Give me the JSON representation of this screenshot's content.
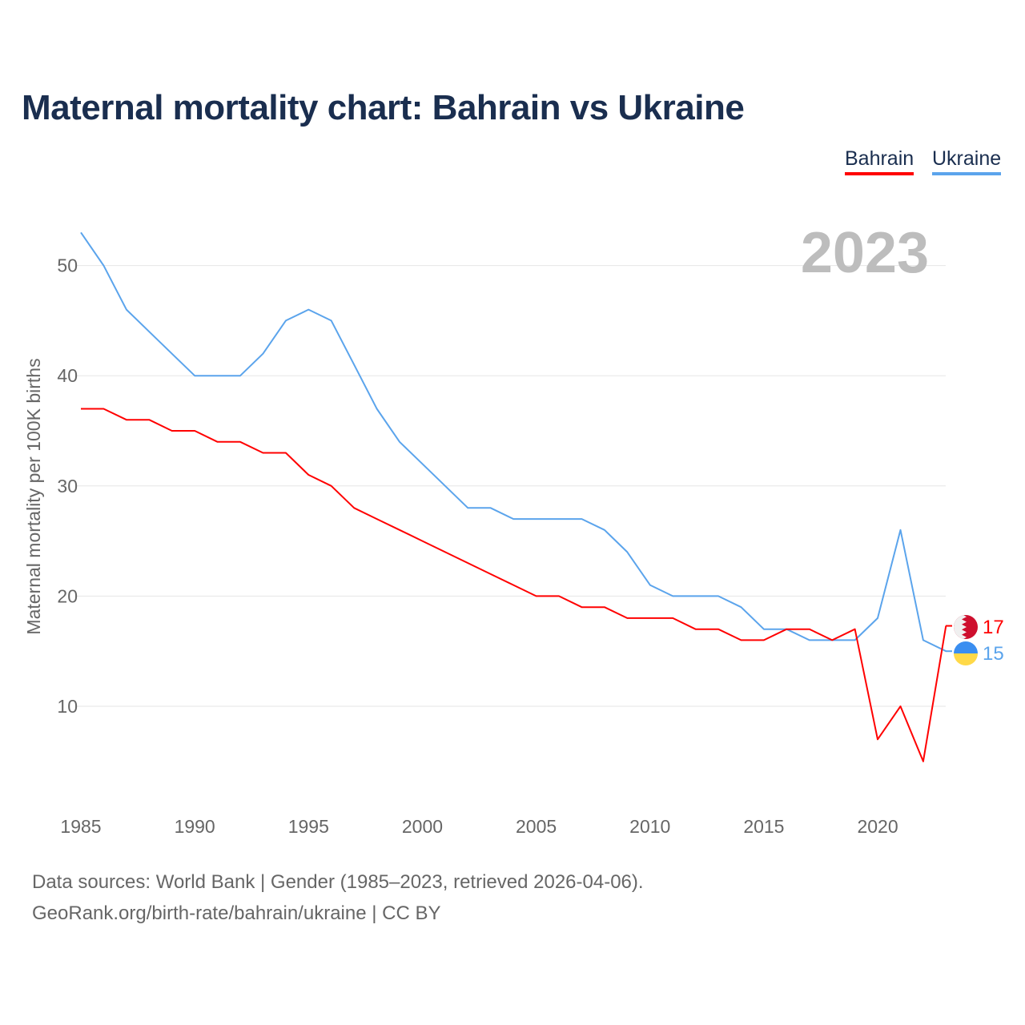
{
  "title": "Maternal mortality chart: Bahrain vs Ukraine",
  "legend": [
    {
      "name": "Bahrain",
      "color": "#ff0000"
    },
    {
      "name": "Ukraine",
      "color": "#5ba4ec"
    }
  ],
  "year_label": "2023",
  "sources": {
    "line1": "Data sources: World Bank | Gender (1985–2023, retrieved 2026-04-06).",
    "line2": "GeoRank.org/birth-rate/bahrain/ukraine | CC BY"
  },
  "chart_data": {
    "type": "line",
    "title": "Maternal mortality chart: Bahrain vs Ukraine",
    "xlabel": "",
    "ylabel": "Maternal mortality per 100K births",
    "xlim": [
      1985,
      2023
    ],
    "ylim": [
      3,
      54
    ],
    "xticks": [
      1985,
      1990,
      1995,
      2000,
      2005,
      2010,
      2015,
      2020
    ],
    "yticks": [
      10,
      20,
      30,
      40,
      50
    ],
    "grid": true,
    "legend_position": "top-right",
    "x": [
      1985,
      1986,
      1987,
      1988,
      1989,
      1990,
      1991,
      1992,
      1993,
      1994,
      1995,
      1996,
      1997,
      1998,
      1999,
      2000,
      2001,
      2002,
      2003,
      2004,
      2005,
      2006,
      2007,
      2008,
      2009,
      2010,
      2011,
      2012,
      2013,
      2014,
      2015,
      2016,
      2017,
      2018,
      2019,
      2020,
      2021,
      2022,
      2023
    ],
    "series": [
      {
        "name": "Ukraine",
        "color": "#5ba4ec",
        "end_label": "15",
        "flag": "ukraine-flag",
        "values": [
          53,
          50,
          46,
          44,
          42,
          40,
          40,
          40,
          42,
          45,
          46,
          45,
          41,
          37,
          34,
          32,
          30,
          28,
          28,
          27,
          27,
          27,
          27,
          26,
          24,
          21,
          20,
          20,
          20,
          19,
          17,
          17,
          16,
          16,
          16,
          18,
          26,
          16,
          15
        ]
      },
      {
        "name": "Bahrain",
        "color": "#ff0000",
        "end_label": "17",
        "flag": "bahrain-flag",
        "values": [
          37,
          37,
          36,
          36,
          35,
          35,
          34,
          34,
          33,
          33,
          31,
          30,
          28,
          27,
          26,
          25,
          24,
          23,
          22,
          21,
          20,
          20,
          19,
          19,
          18,
          18,
          18,
          17,
          17,
          16,
          16,
          17,
          17,
          16,
          17,
          7,
          10,
          5,
          17.3
        ]
      }
    ]
  }
}
